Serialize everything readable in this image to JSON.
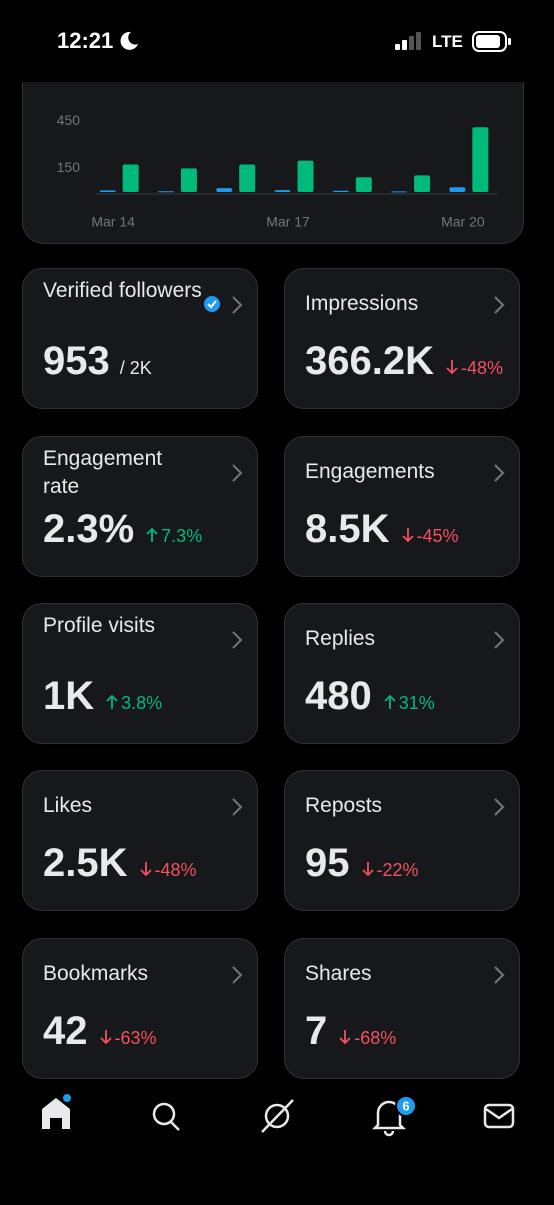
{
  "status": {
    "time": "12:21",
    "network": "LTE"
  },
  "chart_data": {
    "type": "bar",
    "categories": [
      "Mar 14",
      null,
      null,
      "Mar 17",
      null,
      null,
      "Mar 20"
    ],
    "series": [
      {
        "color": "#1d9bf0",
        "values": [
          10,
          5,
          25,
          12,
          8,
          4,
          30
        ]
      },
      {
        "color": "#00ba7c",
        "values": [
          175,
          150,
          175,
          200,
          94,
          106,
          412
        ]
      }
    ],
    "ylim": [
      0,
      560
    ],
    "yticks": [
      150,
      450
    ],
    "grid": false
  },
  "cards": [
    {
      "title": "Verified followers",
      "value": "953",
      "suffix": "/ 2K",
      "verified": true
    },
    {
      "title": "Impressions",
      "value": "366.2K",
      "change": "-48%",
      "direction": "down"
    },
    {
      "title": "Engagement rate",
      "value": "2.3%",
      "change": "7.3%",
      "direction": "up"
    },
    {
      "title": "Engagements",
      "value": "8.5K",
      "change": "-45%",
      "direction": "down"
    },
    {
      "title": "Profile visits",
      "value": "1K",
      "change": "3.8%",
      "direction": "up"
    },
    {
      "title": "Replies",
      "value": "480",
      "change": "31%",
      "direction": "up"
    },
    {
      "title": "Likes",
      "value": "2.5K",
      "change": "-48%",
      "direction": "down"
    },
    {
      "title": "Reposts",
      "value": "95",
      "change": "-22%",
      "direction": "down"
    },
    {
      "title": "Bookmarks",
      "value": "42",
      "change": "-63%",
      "direction": "down"
    },
    {
      "title": "Shares",
      "value": "7",
      "change": "-68%",
      "direction": "down"
    }
  ],
  "nav": {
    "notifications_badge": "6"
  }
}
